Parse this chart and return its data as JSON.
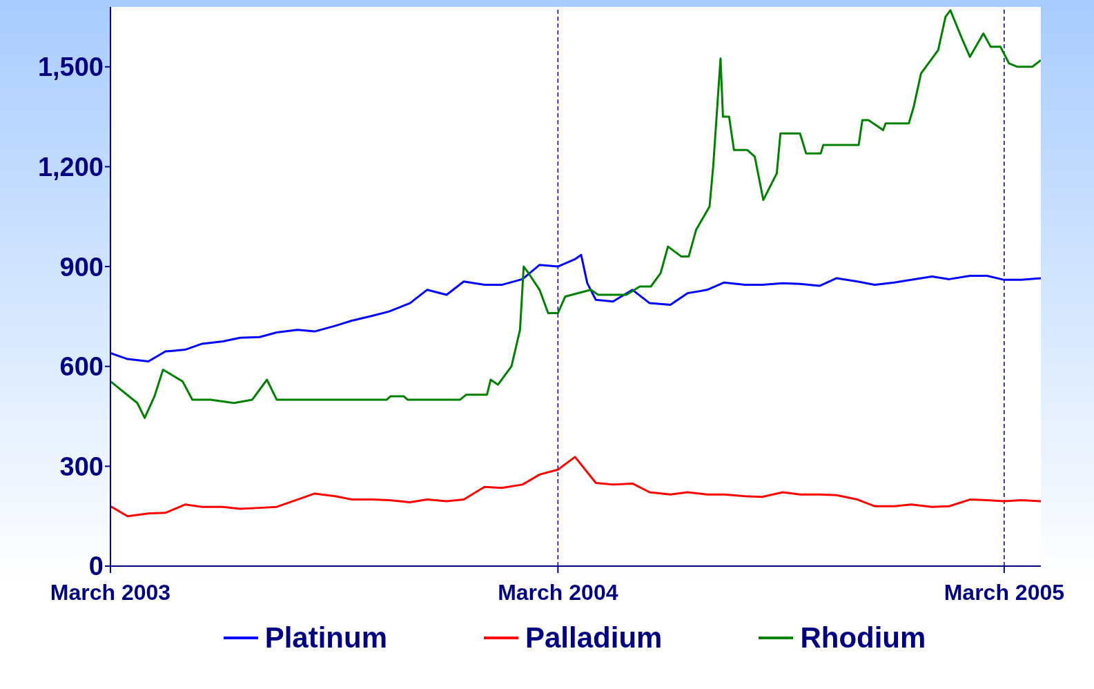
{
  "chart_data": {
    "type": "line",
    "xlim": [
      "2003-03-01",
      "2005-03-31"
    ],
    "xticks": [
      {
        "value": "2003-03-01",
        "label": "March 2003"
      },
      {
        "value": "2004-03-01",
        "label": "March 2004"
      },
      {
        "value": "2005-03-01",
        "label": "March 2005"
      }
    ],
    "ylim": [
      0,
      1680
    ],
    "yticks": [
      0,
      300,
      600,
      900,
      {
        "value": 1200,
        "label": "1,200"
      },
      {
        "value": 1500,
        "label": "1,500"
      }
    ],
    "grid": false,
    "legend": "bottom",
    "marker": "none",
    "line_style": "solid",
    "ref_lines": [
      {
        "axis": "x",
        "value": "2004-03-01",
        "color": "#000080",
        "line_style": "dashed"
      },
      {
        "axis": "x",
        "value": "2005-03-01",
        "color": "#000080",
        "line_style": "dashed"
      }
    ],
    "series": [
      {
        "name": "Platinum",
        "color": "#0000ff",
        "x": [
          "2003-03-01",
          "2003-03-15",
          "2003-04-01",
          "2003-04-15",
          "2003-05-01",
          "2003-05-15",
          "2003-06-01",
          "2003-06-15",
          "2003-07-01",
          "2003-07-15",
          "2003-08-01",
          "2003-08-15",
          "2003-09-01",
          "2003-09-15",
          "2003-10-01",
          "2003-10-15",
          "2003-11-01",
          "2003-11-15",
          "2003-12-01",
          "2003-12-15",
          "2004-01-01",
          "2004-01-15",
          "2004-02-01",
          "2004-02-15",
          "2004-03-01",
          "2004-03-15",
          "2004-03-20",
          "2004-03-25",
          "2004-04-01",
          "2004-04-15",
          "2004-05-01",
          "2004-05-15",
          "2004-06-01",
          "2004-06-15",
          "2004-07-01",
          "2004-07-15",
          "2004-08-01",
          "2004-08-15",
          "2004-09-01",
          "2004-09-15",
          "2004-10-01",
          "2004-10-15",
          "2004-11-01",
          "2004-11-15",
          "2004-12-01",
          "2004-12-15",
          "2005-01-01",
          "2005-01-15",
          "2005-02-01",
          "2005-02-15",
          "2005-03-01",
          "2005-03-15",
          "2005-03-31"
        ],
        "values": [
          640,
          622,
          615,
          645,
          650,
          668,
          675,
          686,
          688,
          702,
          710,
          705,
          722,
          738,
          752,
          765,
          790,
          830,
          815,
          855,
          845,
          845,
          862,
          905,
          900,
          922,
          935,
          850,
          800,
          795,
          830,
          790,
          785,
          820,
          830,
          852,
          845,
          845,
          850,
          848,
          842,
          865,
          855,
          845,
          852,
          860,
          870,
          862,
          872,
          872,
          860,
          860,
          865
        ]
      },
      {
        "name": "Palladium",
        "color": "#ff0000",
        "x": [
          "2003-03-01",
          "2003-03-15",
          "2003-04-01",
          "2003-04-15",
          "2003-05-01",
          "2003-05-15",
          "2003-06-01",
          "2003-06-15",
          "2003-07-01",
          "2003-07-15",
          "2003-08-01",
          "2003-08-15",
          "2003-09-01",
          "2003-09-15",
          "2003-10-01",
          "2003-10-15",
          "2003-11-01",
          "2003-11-15",
          "2003-12-01",
          "2003-12-15",
          "2004-01-01",
          "2004-01-15",
          "2004-02-01",
          "2004-02-15",
          "2004-03-01",
          "2004-03-15",
          "2004-04-01",
          "2004-04-15",
          "2004-05-01",
          "2004-05-15",
          "2004-06-01",
          "2004-06-15",
          "2004-07-01",
          "2004-07-15",
          "2004-08-01",
          "2004-08-15",
          "2004-09-01",
          "2004-09-15",
          "2004-10-01",
          "2004-10-15",
          "2004-11-01",
          "2004-11-15",
          "2004-12-01",
          "2004-12-15",
          "2005-01-01",
          "2005-01-15",
          "2005-02-01",
          "2005-02-15",
          "2005-03-01",
          "2005-03-15",
          "2005-03-31"
        ],
        "values": [
          180,
          150,
          158,
          160,
          185,
          178,
          178,
          172,
          175,
          178,
          200,
          218,
          210,
          200,
          200,
          198,
          192,
          200,
          195,
          200,
          238,
          235,
          245,
          275,
          290,
          328,
          250,
          245,
          248,
          222,
          215,
          222,
          215,
          215,
          210,
          208,
          222,
          215,
          215,
          213,
          200,
          180,
          180,
          185,
          178,
          180,
          200,
          198,
          195,
          198,
          195
        ]
      },
      {
        "name": "Rhodium",
        "color": "#008000",
        "x": [
          "2003-03-01",
          "2003-03-23",
          "2003-03-29",
          "2003-04-06",
          "2003-04-13",
          "2003-04-29",
          "2003-05-07",
          "2003-05-22",
          "2003-06-10",
          "2003-06-25",
          "2003-07-07",
          "2003-07-15",
          "2003-10-13",
          "2003-10-16",
          "2003-10-27",
          "2003-10-30",
          "2003-12-12",
          "2003-12-17",
          "2004-01-03",
          "2004-01-06",
          "2004-01-12",
          "2004-01-23",
          "2004-01-30",
          "2004-02-02",
          "2004-02-06",
          "2004-02-15",
          "2004-02-22",
          "2004-03-01",
          "2004-03-07",
          "2004-03-28",
          "2004-04-03",
          "2004-04-26",
          "2004-05-07",
          "2004-05-16",
          "2004-05-24",
          "2004-05-30",
          "2004-06-10",
          "2004-06-16",
          "2004-06-22",
          "2004-07-03",
          "2004-07-06",
          "2004-07-12",
          "2004-07-14",
          "2004-07-19",
          "2004-07-23",
          "2004-08-03",
          "2004-08-09",
          "2004-08-16",
          "2004-08-27",
          "2004-08-30",
          "2004-09-15",
          "2004-09-20",
          "2004-10-02",
          "2004-10-04",
          "2004-11-02",
          "2004-11-05",
          "2004-11-10",
          "2004-11-22",
          "2004-11-24",
          "2004-12-13",
          "2004-12-17",
          "2004-12-23",
          "2005-01-06",
          "2005-01-12",
          "2005-01-16",
          "2005-01-26",
          "2005-02-01",
          "2005-02-12",
          "2005-02-18",
          "2005-02-26",
          "2005-03-05",
          "2005-03-12",
          "2005-03-24",
          "2005-03-31"
        ],
        "values": [
          555,
          490,
          445,
          510,
          590,
          555,
          500,
          500,
          490,
          500,
          560,
          500,
          500,
          510,
          510,
          500,
          500,
          515,
          515,
          560,
          545,
          600,
          710,
          900,
          880,
          830,
          760,
          760,
          810,
          830,
          815,
          815,
          840,
          840,
          880,
          960,
          930,
          930,
          1010,
          1080,
          1200,
          1525,
          1350,
          1350,
          1250,
          1250,
          1230,
          1100,
          1180,
          1300,
          1300,
          1240,
          1240,
          1265,
          1265,
          1340,
          1340,
          1310,
          1330,
          1330,
          1380,
          1480,
          1550,
          1650,
          1670,
          1580,
          1530,
          1600,
          1560,
          1560,
          1510,
          1500,
          1500,
          1520
        ]
      }
    ]
  }
}
